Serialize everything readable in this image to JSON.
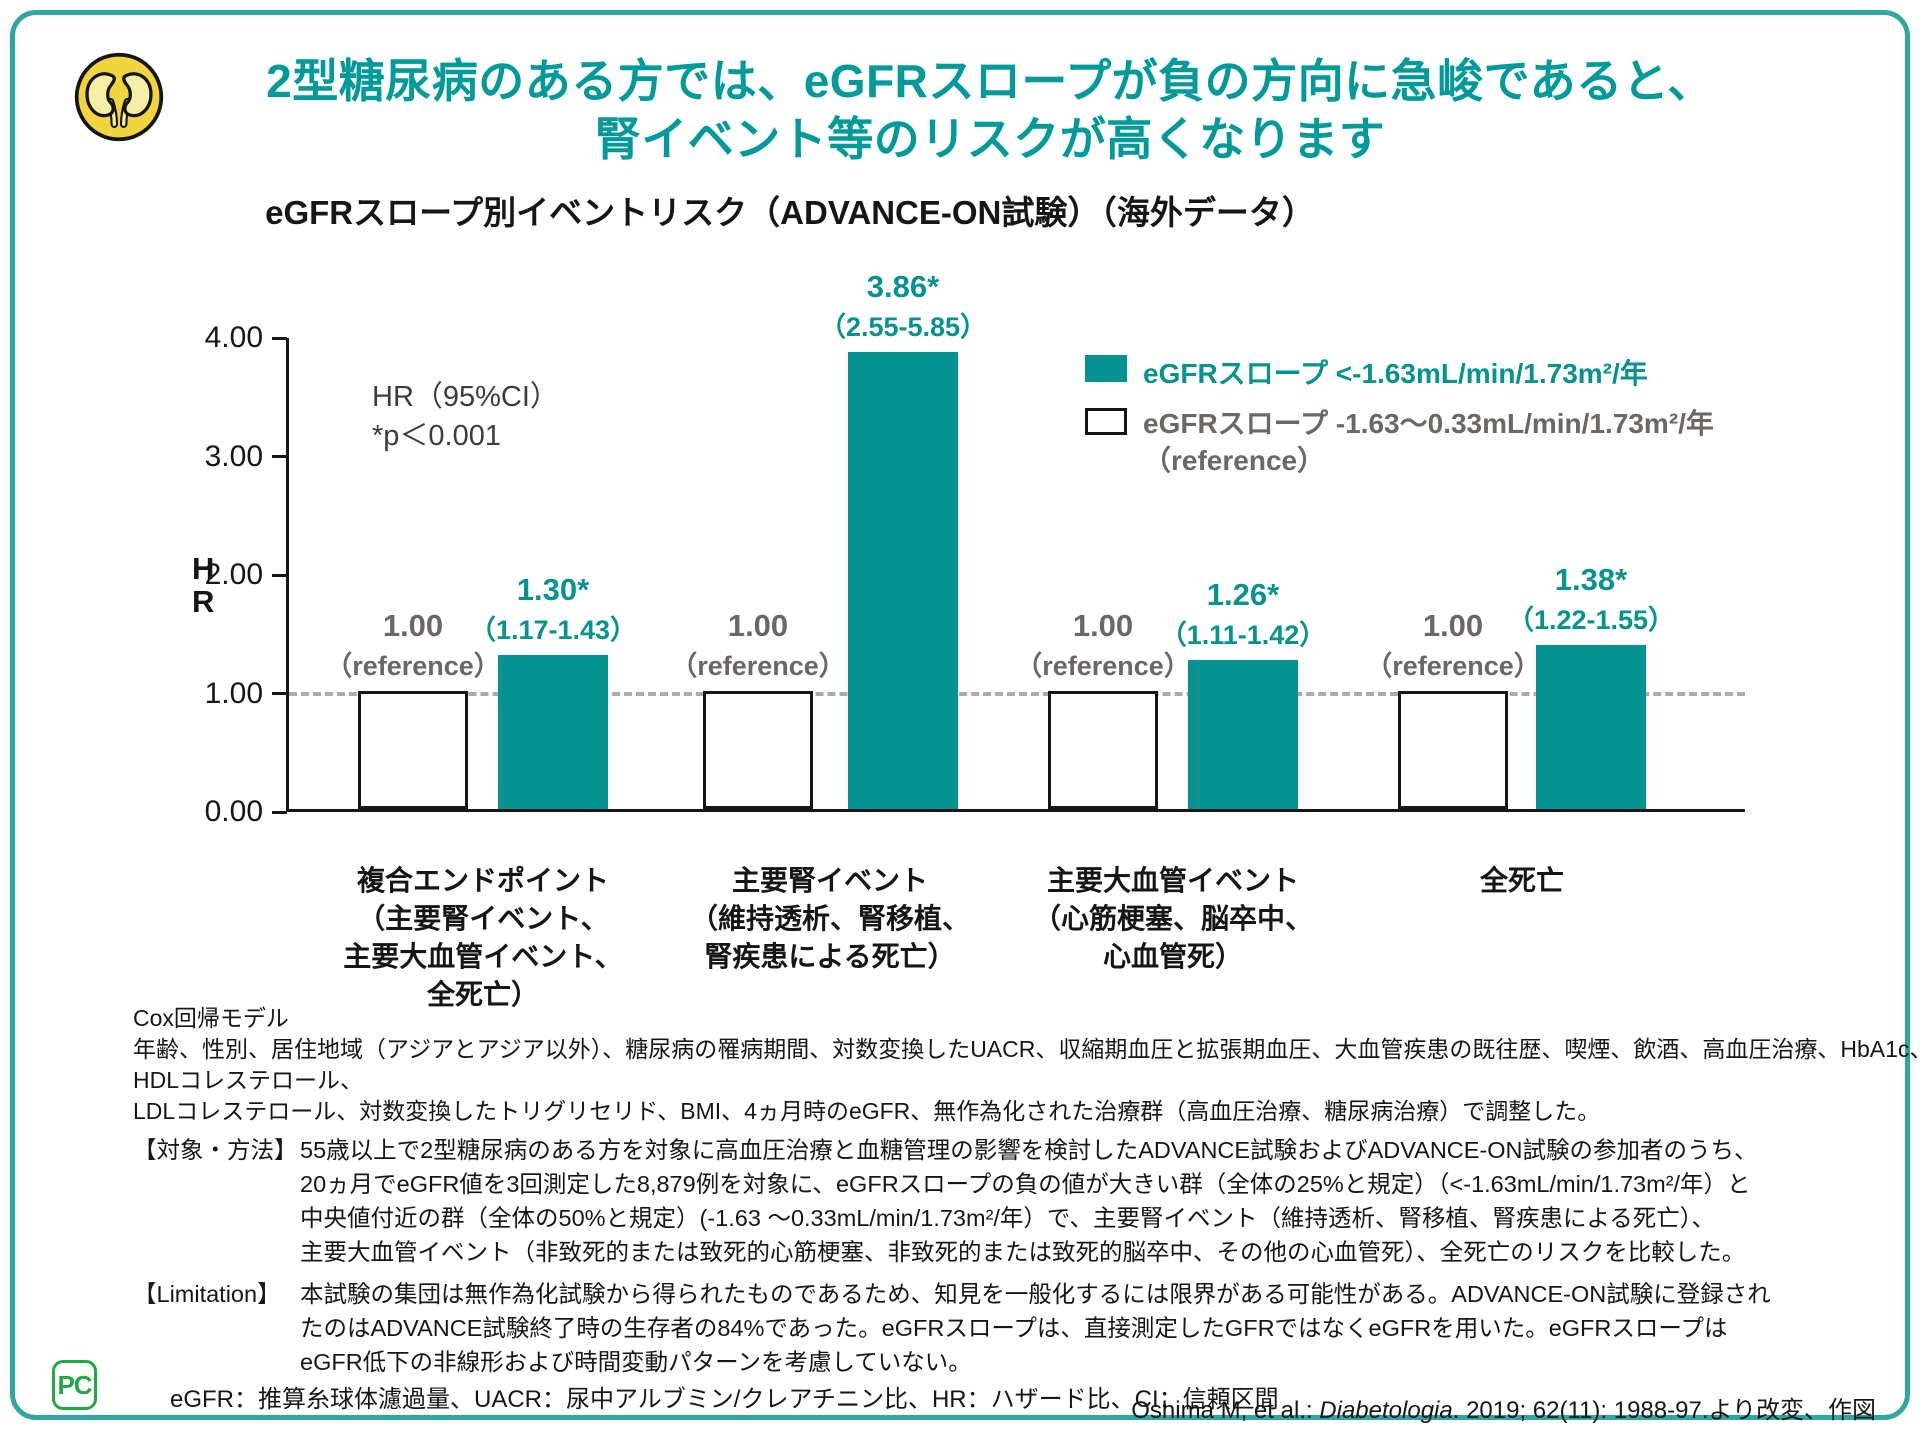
{
  "colors": {
    "teal": "#049390",
    "title_teal": "#009A9A",
    "border_teal": "#2FA7A0",
    "gray_text": "#6B6764",
    "dash_gray": "#ABABAB",
    "logo_green": "#23A744",
    "icon_yellow": "#F2D53E",
    "icon_light_yellow": "#F7EEA6"
  },
  "header": {
    "icon": "kidneys-icon",
    "title_line1": "2型糖尿病のある方では、eGFRスロープが負の方向に急峻であると、",
    "title_line2": "腎イベント等のリスクが高くなります"
  },
  "chart_data": {
    "type": "bar",
    "title": "eGFRスロープ別イベントリスク（ADVANCE-ON試験）（海外データ）",
    "ylabel": "HR",
    "ylabel_lines": [
      "H",
      "R"
    ],
    "ylim": [
      0,
      4
    ],
    "yticks": [
      4,
      3,
      2,
      1,
      0
    ],
    "reference_line": 1.0,
    "grid": false,
    "legend_position": "top-right",
    "annotation": {
      "line1": "HR（95%CI）",
      "line2": "*p＜0.001"
    },
    "legend": [
      {
        "swatch": "teal",
        "label": "eGFRスロープ <-1.63mL/min/1.73m²/年"
      },
      {
        "swatch": "white",
        "label": "eGFRスロープ -1.63～0.33mL/min/1.73m²/年",
        "label2": "（reference）"
      }
    ],
    "categories": [
      [
        "複合エンドポイント",
        "（主要腎イベント、",
        "主要大血管イベント、",
        "全死亡）"
      ],
      [
        "主要腎イベント",
        "（維持透析、腎移植、",
        "腎疾患による死亡）"
      ],
      [
        "主要大血管イベント",
        "（心筋梗塞、脳卒中、",
        "心血管死）"
      ],
      [
        "全死亡"
      ]
    ],
    "series": [
      {
        "name": "eGFRスロープ -1.63～0.33mL/min/1.73m²/年（reference）",
        "color": "white",
        "values": [
          1.0,
          1.0,
          1.0,
          1.0
        ],
        "bar_labels": [
          "1.00",
          "1.00",
          "1.00",
          "1.00"
        ],
        "sub_labels": [
          "（reference）",
          "（reference）",
          "（reference）",
          "（reference）"
        ]
      },
      {
        "name": "eGFRスロープ <-1.63mL/min/1.73m²/年",
        "color": "teal",
        "values": [
          1.3,
          3.86,
          1.26,
          1.38
        ],
        "bar_labels": [
          "1.30*",
          "3.86*",
          "1.26*",
          "1.38*"
        ],
        "ci_labels": [
          "（1.17-1.43）",
          "（2.55-5.85）",
          "（1.11-1.42）",
          "（1.22-1.55）"
        ]
      }
    ]
  },
  "footnotes": {
    "cox_lines": [
      "Cox回帰モデル",
      "年齢、性別、居住地域（アジアとアジア以外）、糖尿病の罹病期間、対数変換したUACR、収縮期血圧と拡張期血圧、大血管疾患の既往歴、喫煙、飲酒、高血圧治療、HbA1c、",
      "HDLコレステロール、",
      "LDLコレステロール、対数変換したトリグリセリド、BMI、4ヵ月時のeGFR、無作為化された治療群（高血圧治療、糖尿病治療）で調整した。"
    ],
    "methods": {
      "label": "【対象・方法】",
      "lines": [
        "55歳以上で2型糖尿病のある方を対象に高血圧治療と血糖管理の影響を検討したADVANCE試験およびADVANCE-ON試験の参加者のうち、",
        "20ヵ月でeGFR値を3回測定した8,879例を対象に、eGFRスロープの負の値が大きい群（全体の25%と規定）（<-1.63mL/min/1.73m²/年）と",
        "中央値付近の群（全体の50%と規定）(-1.63 ～0.33mL/min/1.73m²/年）で、主要腎イベント（維持透析、腎移植、腎疾患による死亡）、",
        "主要大血管イベント（非致死的または致死的心筋梗塞、非致死的または致死的脳卒中、その他の心血管死）、全死亡のリスクを比較した。"
      ]
    },
    "limitation": {
      "label": "【Limitation】",
      "lines": [
        "本試験の集団は無作為化試験から得られたものであるため、知見を一般化するには限界がある可能性がある。ADVANCE-ON試験に登録され",
        "たのはADVANCE試験終了時の生存者の84%であった。eGFRスロープは、直接測定したGFRではなくeGFRを用いた。eGFRスロープは",
        "eGFR低下の非線形および時間変動パターンを考慮していない。"
      ]
    },
    "abbreviations": "eGFR：推算糸球体濾過量、UACR：尿中アルブミン/クレアチニン比、HR：ハザード比、CI：信頼区間",
    "citation": {
      "prefix": "Oshima M, et al.: ",
      "journal": "Diabetologia",
      "suffix": ". 2019; 62(11): 1988-97.より改変、作図"
    },
    "logo": "PC"
  }
}
